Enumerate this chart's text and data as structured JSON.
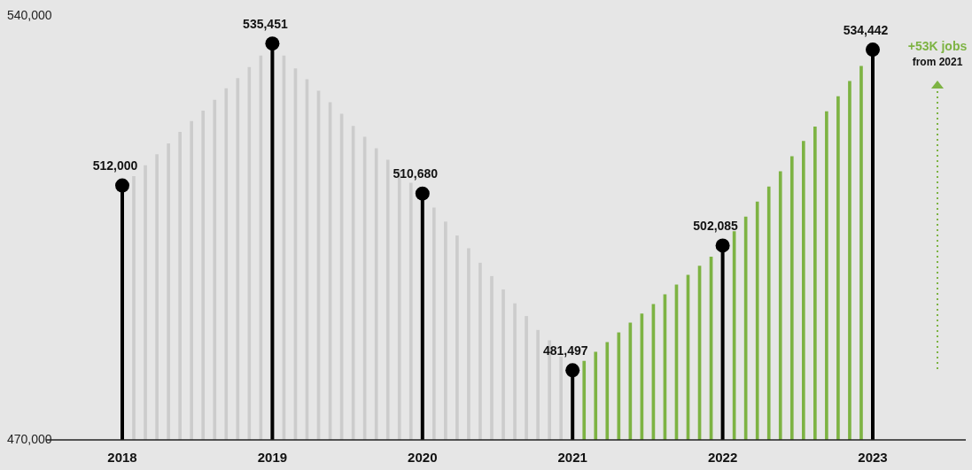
{
  "chart_data": {
    "type": "bar",
    "categories": [
      "2018",
      null,
      null,
      null,
      null,
      null,
      null,
      null,
      null,
      null,
      null,
      null,
      null,
      "2019",
      null,
      null,
      null,
      null,
      null,
      null,
      null,
      null,
      null,
      null,
      null,
      null,
      "2020",
      null,
      null,
      null,
      null,
      null,
      null,
      null,
      null,
      null,
      null,
      null,
      null,
      "2021",
      null,
      null,
      null,
      null,
      null,
      null,
      null,
      null,
      null,
      null,
      null,
      null,
      "2022",
      null,
      null,
      null,
      null,
      null,
      null,
      null,
      null,
      null,
      null,
      null,
      null,
      "2023"
    ],
    "series": [
      {
        "type": "bar",
        "colors": [
          null,
          "#cccccc",
          "#cccccc",
          "#cccccc",
          "#cccccc",
          "#cccccc",
          "#cccccc",
          "#cccccc",
          "#cccccc",
          "#cccccc",
          "#cccccc",
          "#cccccc",
          "#cccccc",
          null,
          "#cccccc",
          "#cccccc",
          "#cccccc",
          "#cccccc",
          "#cccccc",
          "#cccccc",
          "#cccccc",
          "#cccccc",
          "#cccccc",
          "#cccccc",
          "#cccccc",
          "#cccccc",
          null,
          "#cccccc",
          "#cccccc",
          "#cccccc",
          "#cccccc",
          "#cccccc",
          "#cccccc",
          "#cccccc",
          "#cccccc",
          "#cccccc",
          "#cccccc",
          "#cccccc",
          "#cccccc",
          null,
          "#7db343",
          "#7db343",
          "#7db343",
          "#7db343",
          "#7db343",
          "#7db343",
          "#7db343",
          "#7db343",
          "#7db343",
          "#7db343",
          "#7db343",
          "#7db343",
          null,
          "#7db343",
          "#7db343",
          "#7db343",
          "#7db343",
          "#7db343",
          "#7db343",
          "#7db343",
          "#7db343",
          "#7db343",
          "#7db343",
          "#7db343",
          "#7db343",
          null
        ],
        "values": [
          null,
          513500,
          515300,
          517100,
          518900,
          520800,
          522600,
          524300,
          526100,
          528000,
          529700,
          531500,
          533400,
          null,
          533400,
          531300,
          529500,
          527600,
          525700,
          523800,
          521800,
          520000,
          518100,
          516200,
          514400,
          512400,
          null,
          508300,
          506000,
          503700,
          501600,
          499200,
          497000,
          494800,
          492500,
          490400,
          488100,
          486400,
          483700,
          null,
          483000,
          484500,
          486100,
          487700,
          489300,
          490800,
          492400,
          494000,
          495600,
          497200,
          498700,
          500200,
          null,
          504400,
          506800,
          509300,
          511800,
          514300,
          516800,
          519300,
          521700,
          524200,
          526700,
          529200,
          531700,
          null
        ]
      },
      {
        "type": "lollipop",
        "color": "#000000",
        "marker": "circle",
        "values": [
          512000,
          null,
          null,
          null,
          null,
          null,
          null,
          null,
          null,
          null,
          null,
          null,
          null,
          535451,
          null,
          null,
          null,
          null,
          null,
          null,
          null,
          null,
          null,
          null,
          null,
          null,
          510680,
          null,
          null,
          null,
          null,
          null,
          null,
          null,
          null,
          null,
          null,
          null,
          null,
          481497,
          null,
          null,
          null,
          null,
          null,
          null,
          null,
          null,
          null,
          null,
          null,
          null,
          502085,
          null,
          null,
          null,
          null,
          null,
          null,
          null,
          null,
          null,
          null,
          null,
          null,
          534442
        ],
        "value_labels": [
          "512,000",
          null,
          null,
          null,
          null,
          null,
          null,
          null,
          null,
          null,
          null,
          null,
          null,
          "535,451",
          null,
          null,
          null,
          null,
          null,
          null,
          null,
          null,
          null,
          null,
          null,
          null,
          "510,680",
          null,
          null,
          null,
          null,
          null,
          null,
          null,
          null,
          null,
          null,
          null,
          null,
          "481,497",
          null,
          null,
          null,
          null,
          null,
          null,
          null,
          null,
          null,
          null,
          null,
          null,
          "502,085",
          null,
          null,
          null,
          null,
          null,
          null,
          null,
          null,
          null,
          null,
          null,
          null,
          "534,442"
        ]
      }
    ],
    "ylim": [
      470000,
      540000
    ],
    "yticks": [
      {
        "value": 470000,
        "label": "470,000"
      },
      {
        "value": 540000,
        "label": "540,000"
      }
    ],
    "legend": false,
    "annotations": [
      "+53K jobs",
      "from 2021"
    ]
  }
}
